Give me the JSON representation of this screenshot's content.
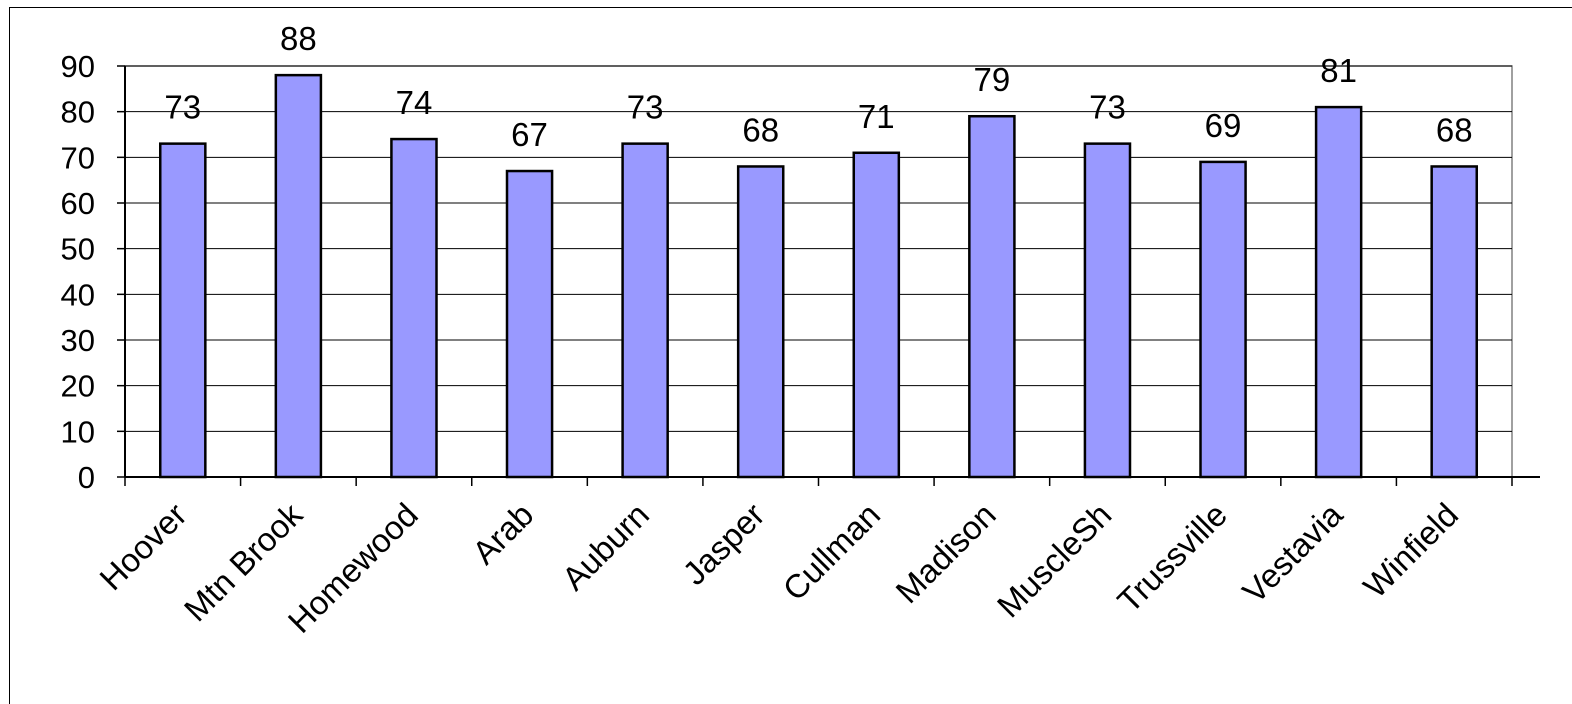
{
  "chart_data": {
    "type": "bar",
    "categories": [
      "Hoover",
      "Mtn Brook",
      "Homewood",
      "Arab",
      "Auburn",
      "Jasper",
      "Cullman",
      "Madison",
      "MuscleSh",
      "Trussville",
      "Vestavia",
      "Winfield"
    ],
    "values": [
      73,
      88,
      74,
      67,
      73,
      68,
      71,
      79,
      73,
      69,
      81,
      68
    ],
    "data_labels": [
      "73",
      "88",
      "74",
      "67",
      "73",
      "68",
      "71",
      "79",
      "73",
      "69",
      "81",
      "68"
    ],
    "title": "",
    "xlabel": "",
    "ylabel": "",
    "ylim": [
      0,
      90
    ],
    "yticks": [
      0,
      10,
      20,
      30,
      40,
      50,
      60,
      70,
      80,
      90
    ],
    "grid": true,
    "legend": "none",
    "bar_color": "#9999ff",
    "bar_edge_color": "#000000"
  }
}
